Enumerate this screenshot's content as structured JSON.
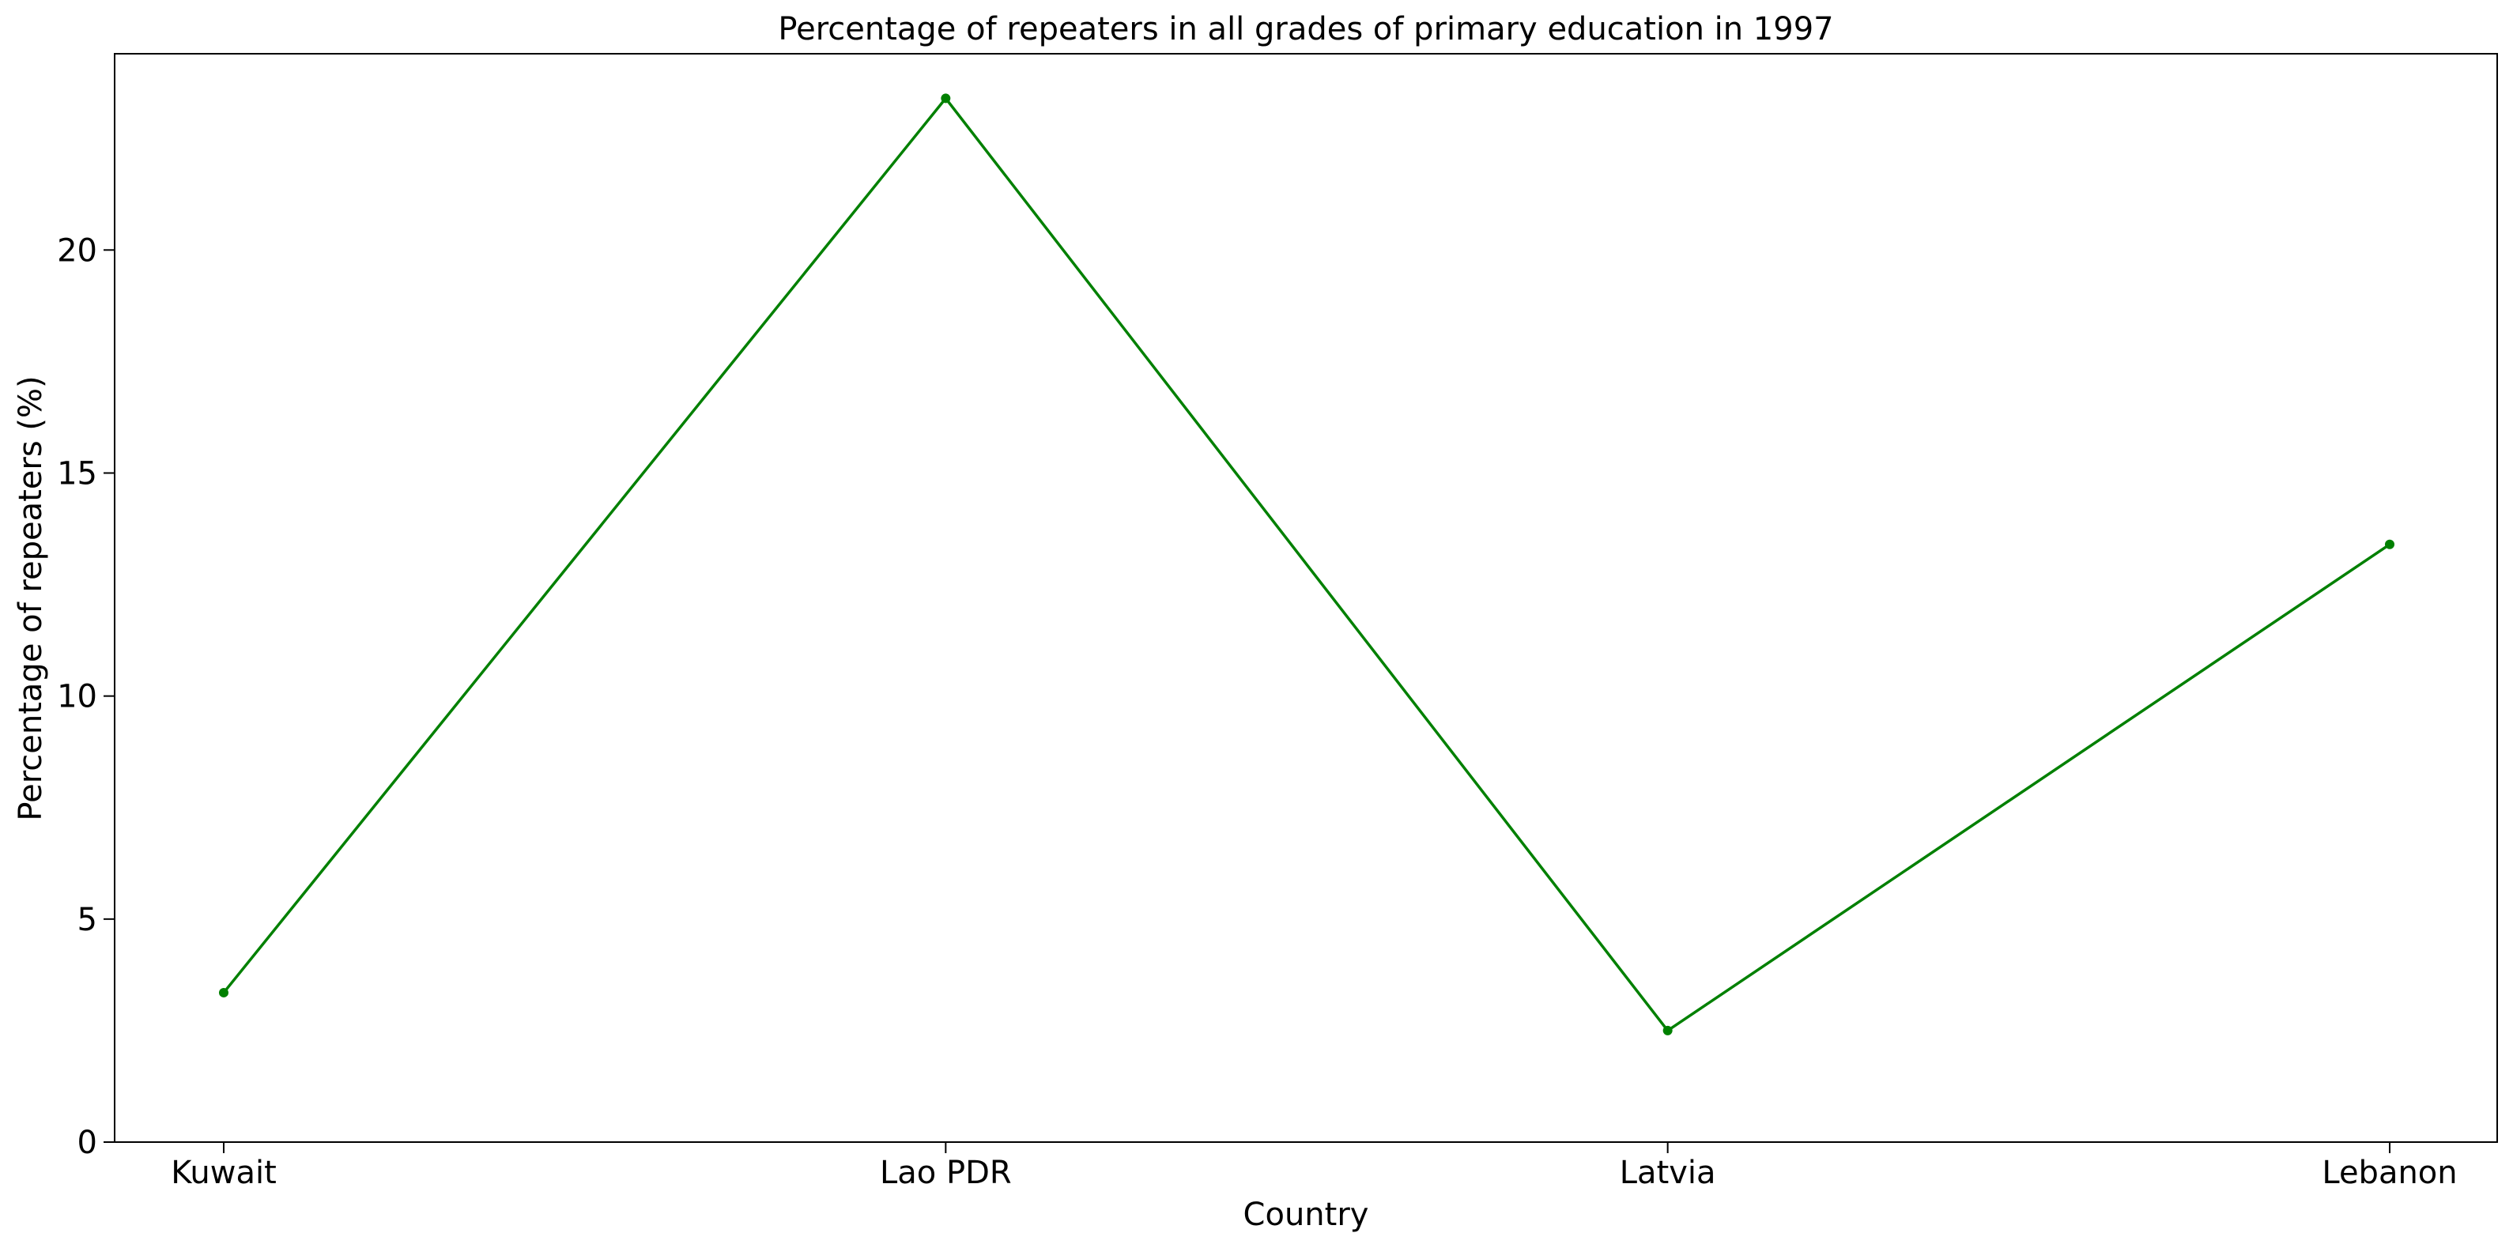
{
  "chart_data": {
    "type": "line",
    "title": "Percentage of repeaters in all grades of primary education in 1997",
    "xlabel": "Country",
    "ylabel": "Percentage of repeaters (%)",
    "categories": [
      "Kuwait",
      "Lao PDR",
      "Latvia",
      "Lebanon"
    ],
    "series": [
      {
        "values": [
          3.35,
          23.4,
          2.5,
          13.4
        ],
        "color": "#008000"
      }
    ],
    "ylim": [
      0,
      24.4
    ],
    "yticks": [
      0,
      5,
      10,
      15,
      20
    ],
    "grid": false,
    "legend": "none"
  }
}
